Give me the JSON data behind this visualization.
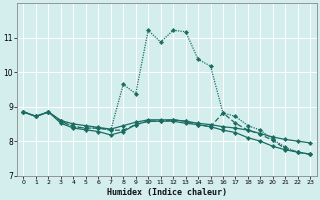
{
  "xlabel": "Humidex (Indice chaleur)",
  "bg_color": "#d4eeed",
  "grid_color": "#ffffff",
  "line_color": "#1a6b60",
  "xlim": [
    -0.5,
    23.5
  ],
  "ylim": [
    7,
    12
  ],
  "yticks": [
    7,
    8,
    9,
    10,
    11
  ],
  "xticks": [
    0,
    1,
    2,
    3,
    4,
    5,
    6,
    7,
    8,
    9,
    10,
    11,
    12,
    13,
    14,
    15,
    16,
    17,
    18,
    19,
    20,
    21,
    22,
    23
  ],
  "lines": [
    {
      "x": [
        0,
        1,
        2,
        3,
        4,
        5,
        6,
        7,
        8,
        9,
        10,
        11,
        12,
        13,
        14,
        15,
        16,
        17,
        18,
        19,
        20,
        21,
        22,
        23
      ],
      "y": [
        8.85,
        8.72,
        8.85,
        8.6,
        8.5,
        8.45,
        8.4,
        8.35,
        8.45,
        8.55,
        8.62,
        8.62,
        8.62,
        8.58,
        8.52,
        8.48,
        8.42,
        8.38,
        8.32,
        8.22,
        8.12,
        8.05,
        8.0,
        7.95
      ],
      "style": "solid",
      "marker": true
    },
    {
      "x": [
        0,
        1,
        2,
        3,
        4,
        5,
        6,
        7,
        8,
        9,
        10,
        11,
        12,
        13,
        14,
        15,
        16,
        17,
        18,
        19,
        20,
        21,
        22,
        23
      ],
      "y": [
        8.85,
        8.72,
        8.85,
        8.52,
        8.38,
        8.33,
        8.28,
        8.18,
        8.28,
        8.48,
        8.58,
        8.58,
        8.58,
        8.52,
        8.48,
        8.42,
        8.32,
        8.25,
        8.1,
        8.0,
        7.85,
        7.75,
        7.68,
        7.62
      ],
      "style": "solid",
      "marker": true
    },
    {
      "x": [
        0,
        1,
        2,
        3,
        4,
        5,
        6,
        7,
        8,
        9,
        10,
        11,
        12,
        13,
        14,
        15,
        16,
        17,
        18,
        19,
        20,
        21,
        22,
        23
      ],
      "y": [
        8.85,
        8.72,
        8.85,
        8.58,
        8.42,
        8.38,
        8.38,
        8.32,
        9.65,
        9.38,
        11.22,
        10.88,
        11.22,
        11.18,
        10.38,
        10.18,
        8.82,
        8.72,
        8.45,
        8.32,
        8.05,
        7.82,
        7.68,
        7.62
      ],
      "style": "dotted",
      "marker": true
    },
    {
      "x": [
        0,
        1,
        2,
        3,
        4,
        5,
        6,
        7,
        8,
        9,
        10,
        11,
        12,
        13,
        14,
        15,
        16,
        17,
        18,
        19,
        20,
        21,
        22,
        23
      ],
      "y": [
        8.85,
        8.72,
        8.85,
        8.58,
        8.42,
        8.38,
        8.38,
        8.32,
        8.32,
        8.48,
        8.58,
        8.58,
        8.62,
        8.58,
        8.48,
        8.42,
        8.82,
        8.52,
        8.32,
        8.2,
        8.02,
        7.78,
        7.68,
        7.62
      ],
      "style": "dashed",
      "marker": true
    }
  ],
  "marker_size": 2.2,
  "lw": 0.9
}
